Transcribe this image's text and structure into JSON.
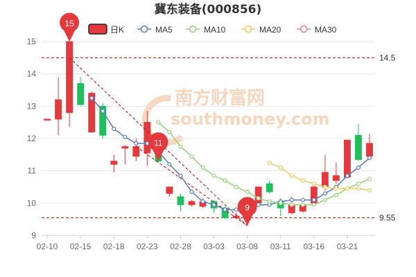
{
  "chart_data": {
    "type": "candlestick",
    "title": "冀东装备(000856)",
    "watermark": {
      "text_cn": "南方财富网",
      "text_en": "southmoney.com"
    },
    "ylim": [
      9,
      15
    ],
    "yticks": [
      9,
      10,
      11,
      12,
      13,
      14,
      15
    ],
    "x_tick_labels": [
      "02-10",
      "02-15",
      "02-18",
      "02-23",
      "02-28",
      "03-03",
      "03-08",
      "03-11",
      "03-16",
      "03-21"
    ],
    "legend": [
      {
        "key": "k",
        "label": "日K",
        "color": "#e4393c"
      },
      {
        "key": "ma5",
        "label": "MA5",
        "color": "#5b7bc4"
      },
      {
        "key": "ma10",
        "label": "MA10",
        "color": "#97d07a"
      },
      {
        "key": "ma20",
        "label": "MA20",
        "color": "#f5c85a"
      },
      {
        "key": "ma30",
        "label": "MA30",
        "color": "#ec7f7f"
      }
    ],
    "candles": [
      {
        "date": "02-10",
        "open": 12.6,
        "close": 12.6,
        "high": 12.6,
        "low": 12.6
      },
      {
        "date": "02-11",
        "open": 12.6,
        "close": 13.2,
        "high": 13.9,
        "low": 12.1
      },
      {
        "date": "02-14",
        "open": 12.8,
        "close": 15.0,
        "high": 15.0,
        "low": 12.35
      },
      {
        "date": "02-15",
        "open": 13.7,
        "close": 13.05,
        "high": 13.9,
        "low": 13.0
      },
      {
        "date": "02-16",
        "open": 12.2,
        "close": 13.4,
        "high": 13.45,
        "low": 12.2
      },
      {
        "date": "02-17",
        "open": 13.0,
        "close": 12.1,
        "high": 13.1,
        "low": 12.0
      },
      {
        "date": "02-18",
        "open": 11.2,
        "close": 11.3,
        "high": 11.5,
        "low": 10.95
      },
      {
        "date": "02-21",
        "open": 11.7,
        "close": 11.75,
        "high": 11.8,
        "low": 11.2
      },
      {
        "date": "02-22",
        "open": 11.45,
        "close": 11.75,
        "high": 12.0,
        "low": 11.3
      },
      {
        "date": "02-23",
        "open": 11.55,
        "close": 12.5,
        "high": 12.85,
        "low": 11.15
      },
      {
        "date": "02-24",
        "open": 11.5,
        "close": 11.3,
        "high": 11.8,
        "low": 11.25
      },
      {
        "date": "02-25",
        "open": 10.3,
        "close": 10.5,
        "high": 10.5,
        "low": 10.2
      },
      {
        "date": "02-28",
        "open": 10.2,
        "close": 9.95,
        "high": 10.3,
        "low": 9.75
      },
      {
        "date": "03-01",
        "open": 9.95,
        "close": 10.05,
        "high": 10.1,
        "low": 9.9
      },
      {
        "date": "03-02",
        "open": 9.9,
        "close": 10.05,
        "high": 10.15,
        "low": 9.85
      },
      {
        "date": "03-03",
        "open": 10.05,
        "close": 9.85,
        "high": 10.1,
        "low": 9.7
      },
      {
        "date": "03-04",
        "open": 9.85,
        "close": 9.55,
        "high": 9.9,
        "low": 9.5
      },
      {
        "date": "03-07",
        "open": 9.55,
        "close": 9.6,
        "high": 9.7,
        "low": 9.5
      },
      {
        "date": "03-08",
        "open": 9.6,
        "close": 9.55,
        "high": 9.6,
        "low": 9.3
      },
      {
        "date": "03-09",
        "open": 10.0,
        "close": 10.5,
        "high": 10.5,
        "low": 9.9
      },
      {
        "date": "03-10",
        "open": 10.6,
        "close": 10.35,
        "high": 10.7,
        "low": 10.3
      },
      {
        "date": "03-11",
        "open": 10.05,
        "close": 9.85,
        "high": 10.15,
        "low": 9.6
      },
      {
        "date": "03-14",
        "open": 9.7,
        "close": 9.95,
        "high": 10.2,
        "low": 9.65
      },
      {
        "date": "03-15",
        "open": 9.75,
        "close": 9.95,
        "high": 10.0,
        "low": 9.7
      },
      {
        "date": "03-16",
        "open": 10.0,
        "close": 10.5,
        "high": 10.55,
        "low": 9.95
      },
      {
        "date": "03-17",
        "open": 10.5,
        "close": 10.95,
        "high": 11.5,
        "low": 10.4
      },
      {
        "date": "03-18",
        "open": 10.7,
        "close": 10.85,
        "high": 11.25,
        "low": 10.6
      },
      {
        "date": "03-21",
        "open": 10.8,
        "close": 11.95,
        "high": 11.95,
        "low": 10.75
      },
      {
        "date": "03-22",
        "open": 12.1,
        "close": 11.35,
        "high": 12.45,
        "low": 11.3
      },
      {
        "date": "03-23",
        "open": 11.45,
        "close": 11.85,
        "high": 12.15,
        "low": 11.4
      }
    ],
    "ma5": [
      null,
      null,
      null,
      null,
      13.25,
      12.85,
      12.3,
      12.05,
      11.85,
      11.85,
      11.6,
      11.2,
      10.85,
      10.35,
      10.05,
      9.95,
      9.8,
      9.8,
      9.65,
      9.95,
      9.95,
      10.05,
      10.1,
      10.1,
      10.1,
      10.3,
      10.5,
      10.85,
      11.1,
      11.4
    ],
    "ma10": [
      null,
      null,
      null,
      null,
      null,
      null,
      null,
      null,
      null,
      null,
      12.5,
      12.2,
      11.75,
      11.45,
      11.1,
      10.85,
      10.7,
      10.5,
      10.35,
      10.15,
      10.05,
      10.0,
      9.95,
      9.95,
      9.95,
      10.1,
      10.25,
      10.45,
      10.6,
      10.75
    ],
    "ma20": [
      null,
      null,
      null,
      null,
      null,
      null,
      null,
      null,
      null,
      null,
      null,
      null,
      null,
      null,
      null,
      null,
      null,
      null,
      null,
      null,
      11.25,
      11.1,
      10.85,
      10.7,
      10.6,
      10.5,
      10.45,
      10.45,
      10.45,
      10.4
    ],
    "ma30": [],
    "reference_lines": [
      {
        "value": 14.5,
        "label": "14.5",
        "color": "#cc0000"
      },
      {
        "value": 9.55,
        "label": "9.55",
        "color": "#cc0000"
      }
    ],
    "markers": [
      {
        "label": "15",
        "index": 2,
        "value": 15.0,
        "color": "#e4393c"
      },
      {
        "label": "11",
        "index": 10,
        "value": 11.3,
        "color": "#e4393c"
      },
      {
        "label": "9",
        "index": 18,
        "value": 9.3,
        "color": "#e4393c"
      }
    ],
    "colors": {
      "up": "#e4393c",
      "down": "#1fbf5c",
      "grid": "#e6e6e6",
      "axis": "#cccccc"
    }
  }
}
